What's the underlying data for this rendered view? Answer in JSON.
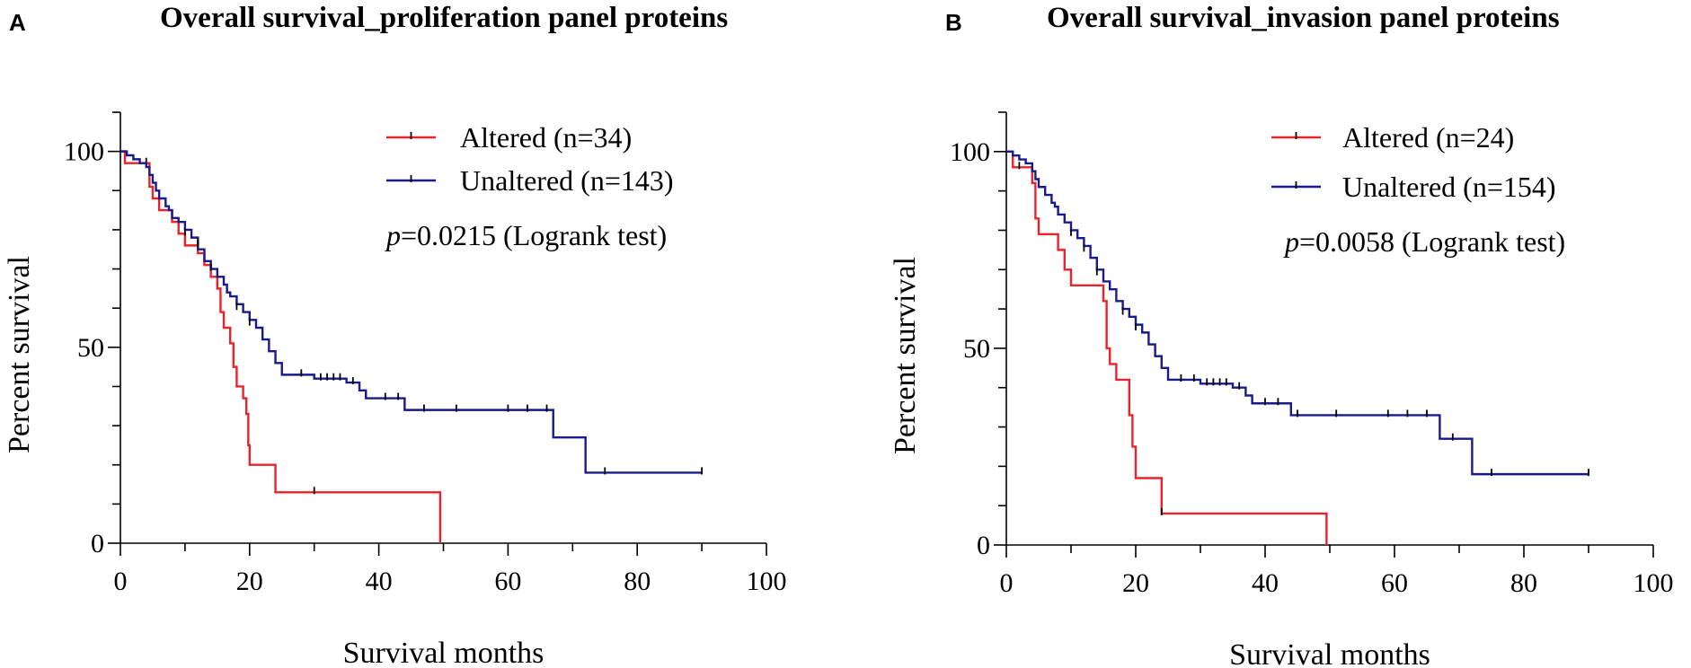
{
  "chart_data": [
    {
      "type": "line",
      "panel_label": "A",
      "title": "Overall survival_proliferation panel proteins",
      "xlabel": "Survival months",
      "ylabel": "Percent survival",
      "xlim": [
        0,
        100
      ],
      "ylim": [
        0,
        110
      ],
      "xticks": [
        0,
        20,
        40,
        60,
        80,
        100
      ],
      "yticks": [
        0,
        50,
        100
      ],
      "legend_position": "top-right",
      "p_value": {
        "p": "p",
        "rest": "=0.0215 (Logrank test)"
      },
      "series": [
        {
          "name": "Altered (n=34)",
          "color": "#e8232a",
          "steps": [
            [
              0,
              100
            ],
            [
              0.7,
              97
            ],
            [
              4,
              97
            ],
            [
              4.5,
              91
            ],
            [
              5,
              88
            ],
            [
              6,
              85
            ],
            [
              8,
              82
            ],
            [
              9,
              79
            ],
            [
              10,
              76
            ],
            [
              12,
              74
            ],
            [
              13,
              71
            ],
            [
              14,
              68
            ],
            [
              15,
              65
            ],
            [
              15.5,
              59
            ],
            [
              16,
              55
            ],
            [
              17,
              51
            ],
            [
              17.5,
              45
            ],
            [
              18,
              40
            ],
            [
              19,
              37
            ],
            [
              19.5,
              33
            ],
            [
              19.8,
              25
            ],
            [
              20,
              20
            ],
            [
              24,
              13
            ],
            [
              49.5,
              0
            ]
          ],
          "end_x": 49.5,
          "censored": [
            [
              4,
              97
            ],
            [
              30,
              13
            ]
          ]
        },
        {
          "name": "Unaltered (n=143)",
          "color": "#1a1a8c",
          "steps": [
            [
              0,
              100
            ],
            [
              1,
              99
            ],
            [
              2,
              98
            ],
            [
              3,
              97
            ],
            [
              4,
              96
            ],
            [
              4.5,
              94
            ],
            [
              5,
              92
            ],
            [
              5.5,
              90
            ],
            [
              6,
              88
            ],
            [
              7,
              86
            ],
            [
              7.5,
              85
            ],
            [
              8,
              83
            ],
            [
              9,
              82
            ],
            [
              10,
              80
            ],
            [
              11,
              78
            ],
            [
              12,
              75
            ],
            [
              13,
              72
            ],
            [
              14,
              70
            ],
            [
              15,
              68
            ],
            [
              16,
              66
            ],
            [
              16.5,
              64
            ],
            [
              17,
              63
            ],
            [
              18,
              61
            ],
            [
              19,
              59
            ],
            [
              20,
              57
            ],
            [
              21,
              55
            ],
            [
              22,
              52
            ],
            [
              23,
              49
            ],
            [
              24,
              46
            ],
            [
              25,
              43
            ],
            [
              30,
              42
            ],
            [
              35,
              41
            ],
            [
              37,
              39
            ],
            [
              38,
              37
            ],
            [
              44,
              34
            ],
            [
              67,
              27
            ],
            [
              72,
              18
            ]
          ],
          "end_x": 90,
          "censored": [
            [
              10,
              79
            ],
            [
              12,
              76
            ],
            [
              14,
              70
            ],
            [
              18,
              60
            ],
            [
              20,
              56
            ],
            [
              28,
              43
            ],
            [
              31,
              42
            ],
            [
              32,
              42
            ],
            [
              33,
              42
            ],
            [
              34,
              42
            ],
            [
              36,
              41
            ],
            [
              41,
              37
            ],
            [
              43,
              37
            ],
            [
              47,
              34
            ],
            [
              52,
              34
            ],
            [
              60,
              34
            ],
            [
              63,
              34
            ],
            [
              66,
              34
            ],
            [
              75,
              18
            ],
            [
              90,
              18
            ]
          ]
        }
      ]
    },
    {
      "type": "line",
      "panel_label": "B",
      "title": "Overall survival_invasion panel proteins",
      "xlabel": "Survival months",
      "ylabel": "Percent survival",
      "xlim": [
        0,
        100
      ],
      "ylim": [
        0,
        110
      ],
      "xticks": [
        0,
        20,
        40,
        60,
        80,
        100
      ],
      "yticks": [
        0,
        50,
        100
      ],
      "legend_position": "top-right",
      "p_value": {
        "p": "p",
        "rest": "=0.0058 (Logrank test)"
      },
      "series": [
        {
          "name": "Altered (n=24)",
          "color": "#e8232a",
          "steps": [
            [
              0,
              100
            ],
            [
              1,
              96
            ],
            [
              4,
              92
            ],
            [
              4.5,
              83
            ],
            [
              5,
              79
            ],
            [
              8,
              75
            ],
            [
              9,
              70
            ],
            [
              10,
              66
            ],
            [
              15,
              62
            ],
            [
              15.5,
              50
            ],
            [
              16,
              46
            ],
            [
              17,
              42
            ],
            [
              19,
              33
            ],
            [
              19.5,
              25
            ],
            [
              20,
              17
            ],
            [
              24,
              8
            ],
            [
              49.5,
              0
            ]
          ],
          "end_x": 49.5,
          "censored": [
            [
              2,
              96
            ],
            [
              24,
              8
            ]
          ]
        },
        {
          "name": "Unaltered (n=154)",
          "color": "#1a1a8c",
          "steps": [
            [
              0,
              100
            ],
            [
              1,
              99
            ],
            [
              2,
              98
            ],
            [
              3,
              97
            ],
            [
              4,
              95
            ],
            [
              4.5,
              93
            ],
            [
              5,
              91
            ],
            [
              6,
              89
            ],
            [
              7,
              87
            ],
            [
              7.5,
              86
            ],
            [
              8,
              84
            ],
            [
              9,
              82
            ],
            [
              10,
              80
            ],
            [
              11,
              78
            ],
            [
              12,
              76
            ],
            [
              13,
              73
            ],
            [
              14,
              70
            ],
            [
              15,
              67
            ],
            [
              16,
              65
            ],
            [
              17,
              62
            ],
            [
              18,
              60
            ],
            [
              19,
              58
            ],
            [
              20,
              56
            ],
            [
              21,
              54
            ],
            [
              22,
              51
            ],
            [
              23,
              48
            ],
            [
              24,
              45
            ],
            [
              25,
              42
            ],
            [
              30,
              41
            ],
            [
              35,
              40
            ],
            [
              37,
              38
            ],
            [
              38,
              36
            ],
            [
              44,
              33
            ],
            [
              67,
              27
            ],
            [
              72,
              18
            ]
          ],
          "end_x": 90,
          "censored": [
            [
              10,
              79
            ],
            [
              12,
              75
            ],
            [
              14,
              69
            ],
            [
              18,
              59
            ],
            [
              20,
              55
            ],
            [
              27,
              42
            ],
            [
              29,
              42
            ],
            [
              31,
              41
            ],
            [
              32,
              41
            ],
            [
              33,
              41
            ],
            [
              34,
              41
            ],
            [
              36,
              40
            ],
            [
              40,
              36
            ],
            [
              42,
              36
            ],
            [
              45,
              33
            ],
            [
              51,
              33
            ],
            [
              59,
              33
            ],
            [
              62,
              33
            ],
            [
              65,
              33
            ],
            [
              69,
              27
            ],
            [
              75,
              18
            ],
            [
              90,
              18
            ]
          ]
        }
      ]
    }
  ]
}
